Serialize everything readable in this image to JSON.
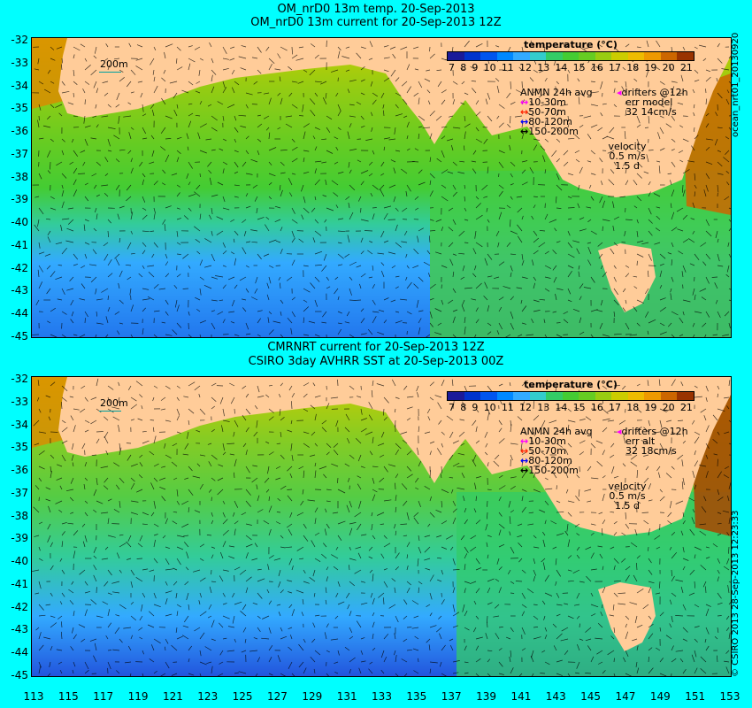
{
  "top": {
    "title_line1": "OM_nrD0 13m temp. 20-Sep-2013",
    "title_line2": "OM_nrD0 13m current for 20-Sep-2013 12Z",
    "err_label": "err model",
    "speed_label": "32 14cm/s",
    "side_text": "ocean_nrt01_20130920"
  },
  "bottom": {
    "title_line1": "CMRNRT current for 20-Sep-2013 12Z",
    "title_line2": "CSIRO 3day AVHRR SST at 20-Sep-2013 00Z",
    "err_label": "err alt",
    "speed_label": "32 18cm/s",
    "side_text": "© CSIRO 2013   28-Sep-2013 12:23:33"
  },
  "colorbar": {
    "title": "temperature (°C)",
    "ticks": [
      "7",
      "8",
      "9",
      "10",
      "11",
      "12",
      "13",
      "14",
      "15",
      "16",
      "17",
      "18",
      "19",
      "20",
      "21"
    ],
    "colors": [
      "#1a1a99",
      "#0033cc",
      "#0055ee",
      "#0088ff",
      "#33aaff",
      "#33cccc",
      "#33cc66",
      "#44cc33",
      "#66cc22",
      "#99cc11",
      "#cccc00",
      "#eebb00",
      "#ee9900",
      "#cc6600",
      "#993300"
    ]
  },
  "legend": {
    "anmn_title": "ANMN 24h avg",
    "depths": [
      {
        "label": "10-30m",
        "color": "#ff00ff"
      },
      {
        "label": "50-70m",
        "color": "#ff2200"
      },
      {
        "label": "80-120m",
        "color": "#0000ff"
      },
      {
        "label": "150-200m",
        "color": "#000000"
      }
    ],
    "drifters": "drifters @12h",
    "velocity_title": "velocity",
    "velocity_value": "0.5 m/s",
    "velocity_days": "1.5 d"
  },
  "scale_label": "200m",
  "y_axis": [
    "-32",
    "-33",
    "-34",
    "-35",
    "-36",
    "-37",
    "-38",
    "-39",
    "-40",
    "-41",
    "-42",
    "-43",
    "-44",
    "-45"
  ],
  "x_axis": [
    "113",
    "115",
    "117",
    "119",
    "121",
    "123",
    "125",
    "127",
    "129",
    "131",
    "133",
    "135",
    "137",
    "139",
    "141",
    "143",
    "145",
    "147",
    "149",
    "151",
    "153"
  ]
}
